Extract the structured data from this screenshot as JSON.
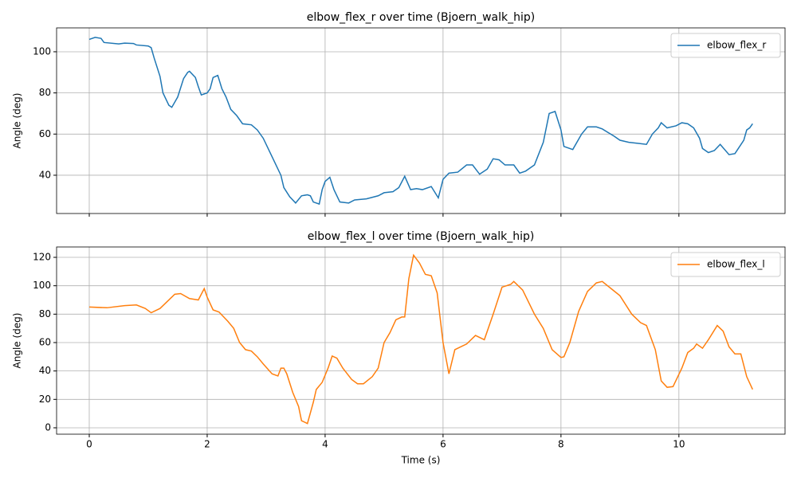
{
  "chart_data": [
    {
      "type": "line",
      "title": "elbow_flex_r over time (Bjoern_walk_hip)",
      "y_label": "Angle (deg)",
      "x": [
        0,
        0.1,
        0.2,
        0.25,
        0.5,
        0.6,
        0.75,
        0.8,
        1.0,
        1.05,
        1.1,
        1.2,
        1.25,
        1.35,
        1.4,
        1.5,
        1.6,
        1.67,
        1.7,
        1.8,
        1.85,
        1.9,
        2.0,
        2.05,
        2.1,
        2.18,
        2.25,
        2.32,
        2.4,
        2.5,
        2.6,
        2.75,
        2.85,
        2.95,
        3.05,
        3.15,
        3.25,
        3.3,
        3.4,
        3.5,
        3.6,
        3.7,
        3.75,
        3.8,
        3.9,
        3.95,
        4.0,
        4.08,
        4.15,
        4.25,
        4.4,
        4.5,
        4.7,
        4.9,
        5.0,
        5.15,
        5.25,
        5.35,
        5.45,
        5.55,
        5.65,
        5.8,
        5.92,
        6.0,
        6.1,
        6.25,
        6.4,
        6.5,
        6.62,
        6.75,
        6.85,
        6.95,
        7.05,
        7.2,
        7.3,
        7.4,
        7.55,
        7.7,
        7.8,
        7.9,
        8.0,
        8.05,
        8.2,
        8.35,
        8.45,
        8.6,
        8.7,
        8.9,
        9.0,
        9.15,
        9.3,
        9.45,
        9.55,
        9.65,
        9.7,
        9.8,
        9.95,
        10.05,
        10.15,
        10.25,
        10.35,
        10.4,
        10.5,
        10.6,
        10.7,
        10.85,
        10.95,
        11.1,
        11.15,
        11.2,
        11.25
      ],
      "series": [
        {
          "name": "elbow_flex_r",
          "color": "#1f77b4",
          "values": [
            106,
            107,
            106.5,
            104.5,
            103.8,
            104.2,
            104,
            103.3,
            102.8,
            102,
            97,
            88,
            80,
            74,
            73,
            78,
            87,
            90,
            90.5,
            87.5,
            83,
            79,
            80,
            82,
            87.5,
            88.5,
            82,
            78,
            72,
            69,
            65,
            64.5,
            62,
            58,
            52,
            46,
            40,
            34,
            29.5,
            26.5,
            30,
            30.5,
            30,
            27,
            26,
            33,
            37,
            39,
            33,
            27,
            26.5,
            28,
            28.5,
            30,
            31.5,
            32,
            34,
            39.5,
            33,
            33.5,
            33,
            34.5,
            29,
            38,
            41,
            41.5,
            45,
            45,
            40.5,
            43,
            48,
            47.5,
            45,
            45,
            41,
            42,
            45,
            56,
            70,
            71,
            62,
            54,
            52.5,
            60,
            63.5,
            63.5,
            62.5,
            59,
            57,
            56,
            55.5,
            55,
            60,
            63,
            65.5,
            63,
            64,
            65.5,
            65,
            63,
            58,
            53,
            51,
            52,
            55,
            50,
            50.5,
            57,
            62,
            63,
            65
          ]
        }
      ],
      "xlim": [
        -0.554,
        11.8
      ],
      "xticks": [
        0,
        2,
        4,
        6,
        8,
        10
      ],
      "ylim": [
        21.4,
        111.6
      ],
      "yticks": [
        40,
        60,
        80,
        100
      ],
      "grid": true,
      "legend": "upper right"
    },
    {
      "type": "line",
      "title": "elbow_flex_l over time (Bjoern_walk_hip)",
      "y_label": "Angle (deg)",
      "x_label": "Time (s)",
      "x": [
        0,
        0.3,
        0.6,
        0.8,
        0.95,
        1.05,
        1.2,
        1.3,
        1.45,
        1.55,
        1.7,
        1.85,
        1.95,
        2.0,
        2.1,
        2.2,
        2.35,
        2.45,
        2.55,
        2.65,
        2.75,
        2.85,
        2.95,
        3.1,
        3.2,
        3.25,
        3.3,
        3.35,
        3.45,
        3.55,
        3.6,
        3.7,
        3.8,
        3.85,
        3.95,
        4.05,
        4.12,
        4.2,
        4.3,
        4.45,
        4.55,
        4.65,
        4.8,
        4.9,
        5.0,
        5.1,
        5.2,
        5.3,
        5.35,
        5.42,
        5.5,
        5.6,
        5.7,
        5.8,
        5.9,
        6.0,
        6.1,
        6.2,
        6.3,
        6.4,
        6.55,
        6.7,
        6.85,
        7.0,
        7.15,
        7.2,
        7.35,
        7.55,
        7.7,
        7.85,
        8.0,
        8.05,
        8.15,
        8.3,
        8.45,
        8.6,
        8.7,
        8.85,
        9.0,
        9.2,
        9.35,
        9.45,
        9.6,
        9.7,
        9.8,
        9.9,
        10.05,
        10.15,
        10.25,
        10.3,
        10.4,
        10.5,
        10.65,
        10.75,
        10.85,
        10.95,
        11.05,
        11.15,
        11.25
      ],
      "series": [
        {
          "name": "elbow_flex_l",
          "color": "#ff7f0e",
          "values": [
            85,
            84.5,
            86,
            86.5,
            84,
            81,
            84,
            88,
            94,
            94.5,
            91,
            90,
            98,
            92,
            83,
            81.5,
            75,
            70,
            60,
            55,
            54,
            50,
            45,
            38,
            36.5,
            42,
            42,
            38,
            25,
            15,
            5,
            3,
            18,
            27,
            32,
            42,
            50.5,
            49,
            42,
            34,
            31,
            31,
            36,
            42,
            60,
            67,
            76,
            78,
            78,
            105,
            121.5,
            116,
            108,
            107,
            95,
            60,
            38,
            55,
            57,
            59,
            65,
            62,
            80,
            99,
            101,
            103,
            97,
            80,
            70,
            55,
            49.5,
            50,
            60,
            82,
            96,
            102,
            103,
            98,
            93,
            80,
            74,
            72,
            55,
            33,
            28.5,
            29,
            42,
            53,
            56,
            59,
            56,
            62,
            72,
            68,
            57,
            52,
            52,
            36,
            27
          ]
        }
      ],
      "xlim": [
        -0.554,
        11.8
      ],
      "xticks": [
        0,
        2,
        4,
        6,
        8,
        10
      ],
      "ylim": [
        -4.5,
        127.3
      ],
      "yticks": [
        0,
        20,
        40,
        60,
        80,
        100,
        120
      ],
      "grid": true,
      "legend": "upper right"
    }
  ]
}
